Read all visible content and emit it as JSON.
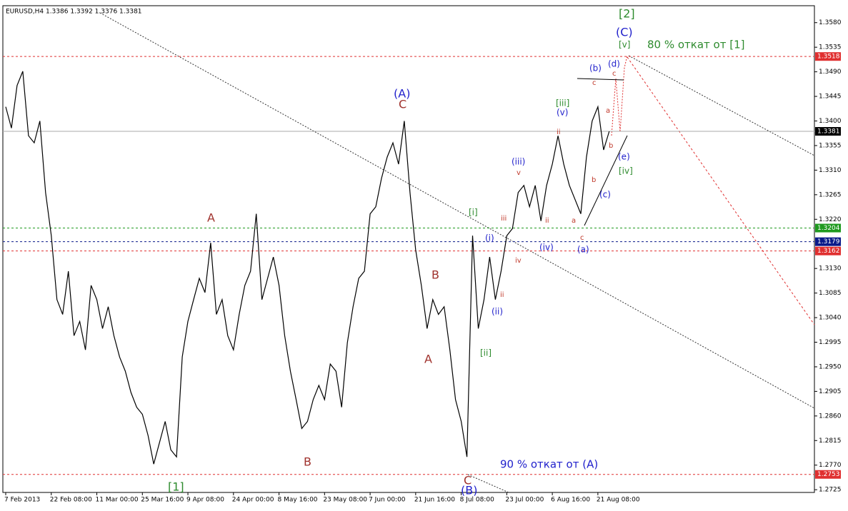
{
  "chart_data": {
    "type": "line",
    "title": "EURUSD,H4 1.3386 1.3392 1.3376 1.3381",
    "color": "#000000",
    "categories": [
      "7 Feb 2013",
      null,
      null,
      null,
      null,
      null,
      null,
      null,
      "22 Feb 08:00",
      null,
      null,
      null,
      null,
      null,
      null,
      null,
      "11 Mar 00:00",
      null,
      null,
      null,
      null,
      null,
      null,
      null,
      "25 Mar 16:00",
      null,
      null,
      null,
      null,
      null,
      null,
      null,
      "9 Apr 08:00",
      null,
      null,
      null,
      null,
      null,
      null,
      null,
      "24 Apr 00:00",
      null,
      null,
      null,
      null,
      null,
      null,
      null,
      "8 May 16:00",
      null,
      null,
      null,
      null,
      null,
      null,
      null,
      "23 May 08:00",
      null,
      null,
      null,
      null,
      null,
      null,
      null,
      "7 Jun 00:00",
      null,
      null,
      null,
      null,
      null,
      null,
      null,
      "21 Jun 16:00",
      null,
      null,
      null,
      null,
      null,
      null,
      null,
      "8 Jul 08:00",
      null,
      null,
      null,
      null,
      null,
      null,
      null,
      "23 Jul 00:00",
      null,
      null,
      null,
      null,
      null,
      null,
      null,
      "6 Aug 16:00",
      null,
      null,
      null,
      null,
      null,
      null,
      null,
      "21 Aug 08:00",
      null,
      null
    ],
    "values": [
      1.3426,
      1.3387,
      1.3465,
      1.3491,
      1.3373,
      1.336,
      1.34,
      1.3269,
      1.319,
      1.3073,
      1.3046,
      1.3125,
      1.3007,
      1.3033,
      1.2981,
      1.3099,
      1.3073,
      1.302,
      1.306,
      1.3007,
      1.2968,
      1.2942,
      1.2903,
      1.2876,
      1.2863,
      1.2824,
      1.2772,
      1.2811,
      1.285,
      1.2798,
      1.2785,
      1.2968,
      1.3033,
      1.3073,
      1.3112,
      1.3086,
      1.3177,
      1.3046,
      1.3073,
      1.3007,
      1.2981,
      1.3046,
      1.3099,
      1.3125,
      1.323,
      1.3073,
      1.3112,
      1.3151,
      1.3099,
      1.3007,
      1.2942,
      1.289,
      1.2837,
      1.285,
      1.289,
      1.2916,
      1.289,
      1.2955,
      1.2942,
      1.2876,
      1.2994,
      1.306,
      1.3112,
      1.3125,
      1.323,
      1.3243,
      1.3295,
      1.3334,
      1.336,
      1.3321,
      1.34,
      1.3269,
      1.3164,
      1.3099,
      1.302,
      1.3073,
      1.3046,
      1.306,
      1.2981,
      1.289,
      1.285,
      1.2785,
      1.319,
      1.302,
      1.3073,
      1.3151,
      1.3073,
      1.3125,
      1.319,
      1.3203,
      1.3269,
      1.3282,
      1.3243,
      1.3282,
      1.3217,
      1.3282,
      1.3321,
      1.3373,
      1.3321,
      1.3282,
      1.3256,
      1.323,
      1.3334,
      1.34,
      1.3426,
      1.3347,
      1.3381
    ],
    "ylim": [
      1.272,
      1.3611
    ],
    "yticks": [
      {
        "value": 1.358,
        "label": "1.3580"
      },
      1.3535,
      {
        "value": 1.349,
        "label": "1.3490"
      },
      1.3445,
      {
        "value": 1.34,
        "label": "1.3400"
      },
      1.3355,
      {
        "value": 1.331,
        "label": "1.3310"
      },
      1.3265,
      {
        "value": 1.322,
        "label": "1.3220"
      },
      {
        "value": 1.313,
        "label": "1.3130"
      },
      1.3085,
      {
        "value": 1.304,
        "label": "1.3040"
      },
      1.2995,
      {
        "value": 1.295,
        "label": "1.2950"
      },
      1.2905,
      {
        "value": 1.286,
        "label": "1.2860"
      },
      1.2815,
      {
        "value": 1.277,
        "label": "1.2770"
      },
      1.2725
    ],
    "levels": [
      {
        "value": 1.3518,
        "color": "#e03030"
      },
      {
        "value": 1.3381,
        "color": "#000000"
      },
      {
        "value": 1.3204,
        "color": "#1f9a1f"
      },
      {
        "value": 1.3179,
        "color": "#0a1a8a"
      },
      {
        "value": 1.3162,
        "color": "#e03030"
      },
      {
        "value": 1.2753,
        "color": "#e03030"
      }
    ],
    "annotations": [
      {
        "text": "[2]",
        "color": "#2e8b2e"
      },
      {
        "text": "(C)",
        "color": "#2222cc"
      },
      {
        "text": "[v]",
        "color": "#2e8b2e"
      },
      {
        "text": "80 % откат от [1]",
        "color": "#2e8b2e"
      },
      {
        "text": "(b)",
        "color": "#2222cc"
      },
      {
        "text": "(d)",
        "color": "#2222cc"
      },
      {
        "text": "(A)",
        "color": "#2222cc"
      },
      {
        "text": "C",
        "color": "#a0322d"
      },
      {
        "text": "[iii]",
        "color": "#2e8b2e"
      },
      {
        "text": "(v)",
        "color": "#2222cc"
      },
      {
        "text": "A",
        "color": "#a0322d"
      },
      {
        "text": "[i]",
        "color": "#2e8b2e"
      },
      {
        "text": "(i)",
        "color": "#2222cc"
      },
      {
        "text": "(iii)",
        "color": "#2222cc"
      },
      {
        "text": "(iv)",
        "color": "#2222cc"
      },
      {
        "text": "(a)",
        "color": "#2222cc"
      },
      {
        "text": "(e)",
        "color": "#2222cc"
      },
      {
        "text": "[iv]",
        "color": "#2e8b2e"
      },
      {
        "text": "(c)",
        "color": "#2222cc"
      },
      {
        "text": "B",
        "color": "#a0322d"
      },
      {
        "text": "A",
        "color": "#a0322d"
      },
      {
        "text": "(ii)",
        "color": "#2222cc"
      },
      {
        "text": "[ii]",
        "color": "#2e8b2e"
      },
      {
        "text": "B",
        "color": "#a0322d"
      },
      {
        "text": "[1]",
        "color": "#2e8b2e"
      },
      {
        "text": "C",
        "color": "#a0322d"
      },
      {
        "text": "(B)",
        "color": "#2222cc"
      },
      {
        "text": "90 % откат от (A)",
        "color": "#2222cc"
      },
      {
        "text": "iii",
        "color": "#c0392b"
      },
      {
        "text": "iv",
        "color": "#c0392b"
      },
      {
        "text": "ii",
        "color": "#c0392b"
      },
      {
        "text": "v",
        "color": "#c0392b"
      },
      {
        "text": "ii",
        "color": "#c0392b"
      },
      {
        "text": "ii",
        "color": "#c0392b"
      },
      {
        "text": "a",
        "color": "#c0392b"
      },
      {
        "text": "c",
        "color": "#c0392b"
      },
      {
        "text": "b",
        "color": "#c0392b"
      },
      {
        "text": "a",
        "color": "#c0392b"
      },
      {
        "text": "c",
        "color": "#c0392b"
      },
      {
        "text": "c",
        "color": "#c0392b"
      },
      {
        "text": "b",
        "color": "#c0392b"
      }
    ]
  }
}
